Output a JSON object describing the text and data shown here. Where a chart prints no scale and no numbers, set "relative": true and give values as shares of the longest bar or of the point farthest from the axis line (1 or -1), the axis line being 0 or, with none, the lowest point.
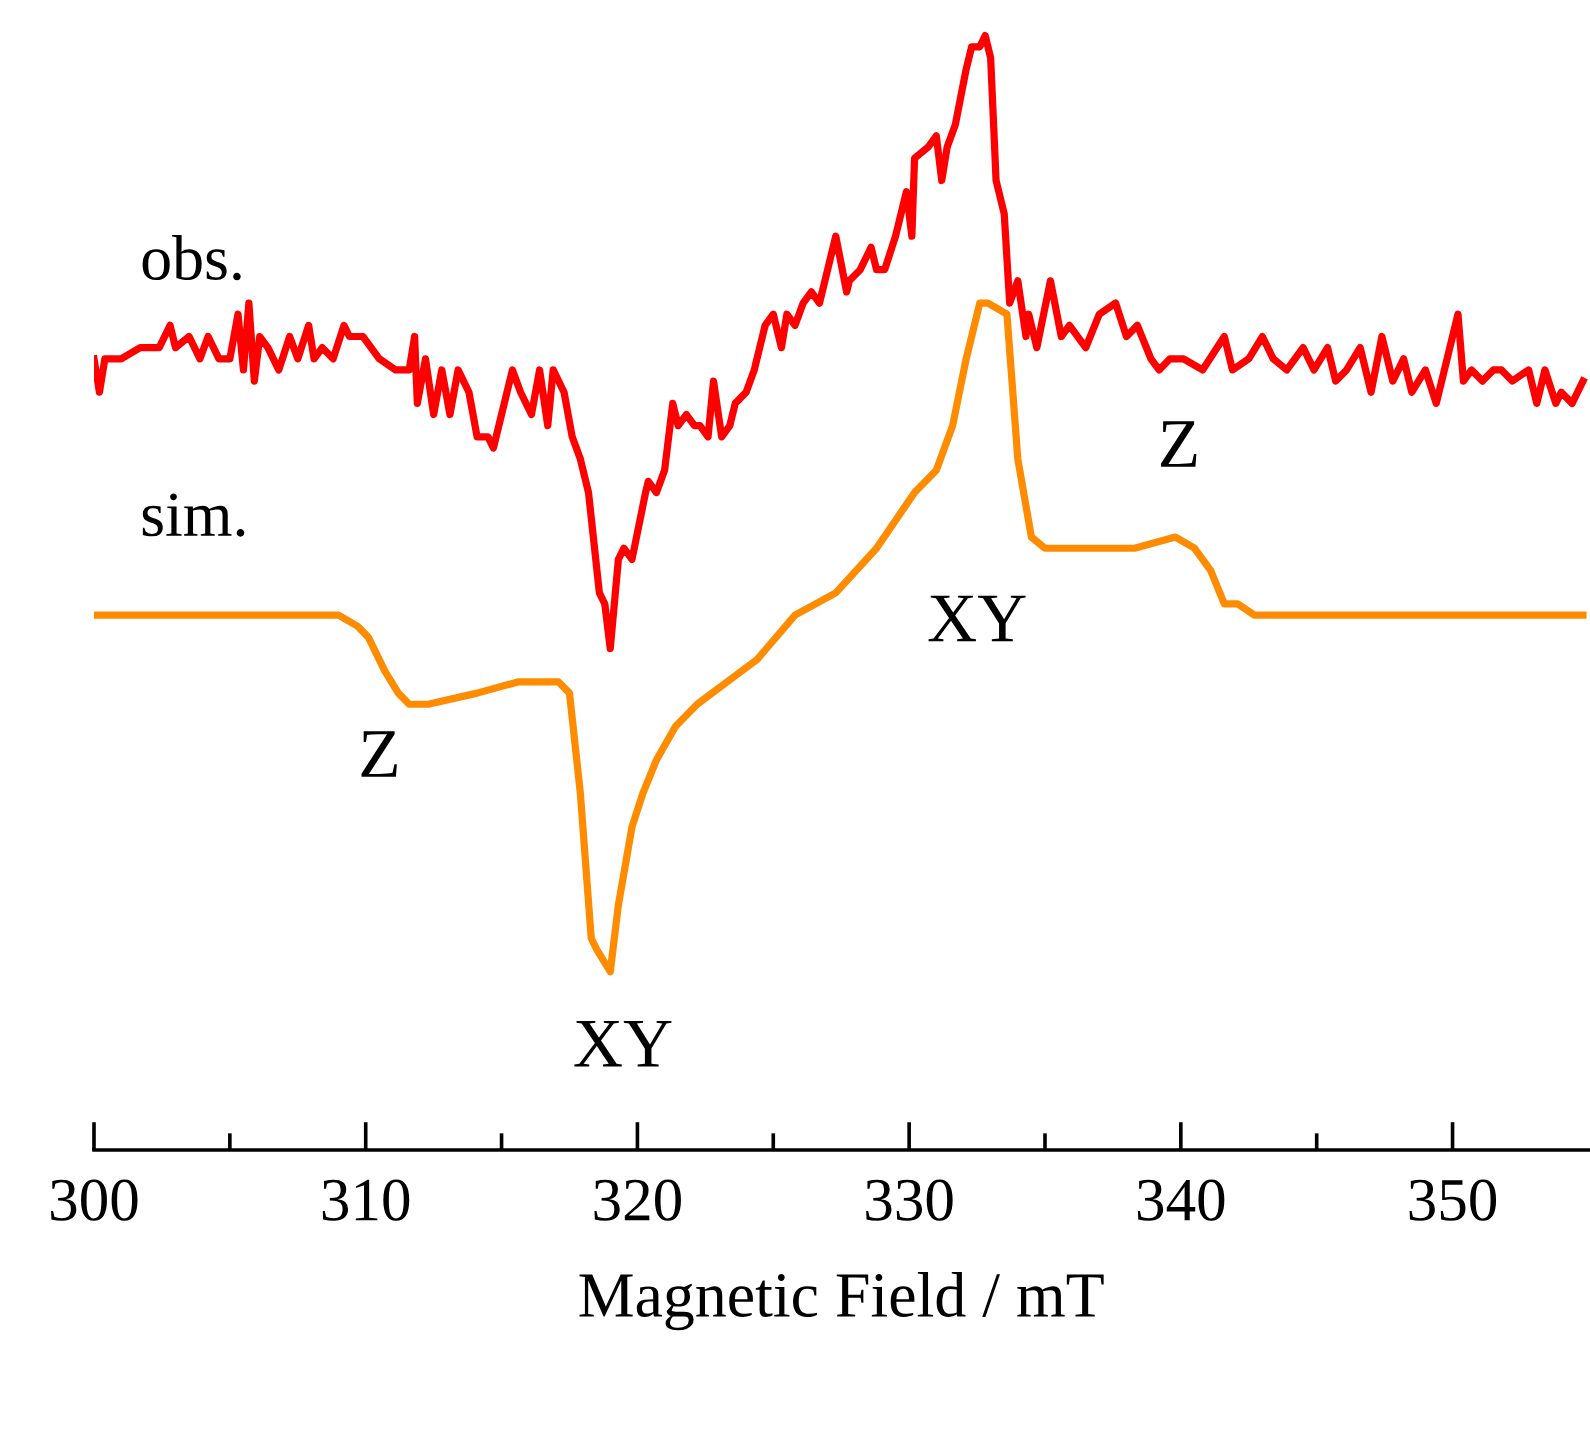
{
  "chart_data": {
    "type": "line",
    "relative": true,
    "xlabel": "Magnetic Field / mT",
    "xlim": [
      300,
      355
    ],
    "xticks": [
      300,
      {
        "value": 305,
        "label": null
      },
      310,
      {
        "value": 315,
        "label": null
      },
      320,
      {
        "value": 325,
        "label": null
      },
      330,
      {
        "value": 335,
        "label": null
      },
      340,
      {
        "value": 345,
        "label": null
      },
      350
    ],
    "grid": false,
    "legend": false,
    "marker": "none",
    "line_style": "solid",
    "annotations": [
      "Z",
      "XY",
      "XY",
      "Z"
    ],
    "series": [
      {
        "name": "obs.",
        "color": "#ff0000",
        "x": [
          300.0,
          300.2,
          300.4,
          301.0,
          301.7,
          302.4,
          302.8,
          303.0,
          303.5,
          303.9,
          304.2,
          304.6,
          305.0,
          305.3,
          305.5,
          305.7,
          305.9,
          306.1,
          306.4,
          306.8,
          307.2,
          307.5,
          307.9,
          308.1,
          308.4,
          308.8,
          309.2,
          309.4,
          309.9,
          310.5,
          311.1,
          311.6,
          311.8,
          311.9,
          312.2,
          312.5,
          312.8,
          313.1,
          313.4,
          313.8,
          314.1,
          314.5,
          314.7,
          315.4,
          315.7,
          316.1,
          316.4,
          316.7,
          316.9,
          317.3,
          317.6,
          317.9,
          318.2,
          318.6,
          318.8,
          319.0,
          319.3,
          319.5,
          319.8,
          320.3,
          320.4,
          320.7,
          321.0,
          321.3,
          321.5,
          321.8,
          322.1,
          322.3,
          322.6,
          322.8,
          323.1,
          323.4,
          323.6,
          324.0,
          324.3,
          324.7,
          325.0,
          325.3,
          325.5,
          325.8,
          326.1,
          326.4,
          326.7,
          326.9,
          327.3,
          327.7,
          327.8,
          328.2,
          328.6,
          328.8,
          329.1,
          329.5,
          329.9,
          330.1,
          330.2,
          330.7,
          331.0,
          331.2,
          331.4,
          331.7,
          332.1,
          332.3,
          332.6,
          332.8,
          333.0,
          333.2,
          333.5,
          333.7,
          334.0,
          334.3,
          334.4,
          334.7,
          335.2,
          335.6,
          335.9,
          336.5,
          337.0,
          337.6,
          338.0,
          338.4,
          338.9,
          339.2,
          339.6,
          340.1,
          340.8,
          341.6,
          341.9,
          342.5,
          343.0,
          343.4,
          343.9,
          344.5,
          344.9,
          345.4,
          345.7,
          346.1,
          346.6,
          347.0,
          347.4,
          347.8,
          348.2,
          348.5,
          349.0,
          349.4,
          350.2,
          350.4,
          350.7,
          351.1,
          351.5,
          351.8,
          352.2,
          352.8,
          353.1,
          353.4,
          353.8,
          354.0,
          354.4,
          354.8
        ],
        "values": [
          0.71,
          0.68,
          0.71,
          0.71,
          0.72,
          0.72,
          0.74,
          0.72,
          0.73,
          0.71,
          0.73,
          0.71,
          0.71,
          0.75,
          0.7,
          0.76,
          0.69,
          0.73,
          0.72,
          0.7,
          0.73,
          0.71,
          0.74,
          0.71,
          0.72,
          0.71,
          0.74,
          0.73,
          0.73,
          0.71,
          0.7,
          0.7,
          0.73,
          0.67,
          0.71,
          0.66,
          0.7,
          0.66,
          0.7,
          0.68,
          0.64,
          0.64,
          0.63,
          0.7,
          0.68,
          0.66,
          0.7,
          0.65,
          0.7,
          0.68,
          0.64,
          0.62,
          0.59,
          0.5,
          0.49,
          0.45,
          0.53,
          0.54,
          0.53,
          0.59,
          0.6,
          0.59,
          0.61,
          0.67,
          0.65,
          0.66,
          0.65,
          0.65,
          0.64,
          0.69,
          0.64,
          0.65,
          0.67,
          0.68,
          0.7,
          0.74,
          0.75,
          0.72,
          0.75,
          0.74,
          0.76,
          0.77,
          0.76,
          0.78,
          0.82,
          0.77,
          0.78,
          0.79,
          0.81,
          0.79,
          0.79,
          0.82,
          0.86,
          0.82,
          0.89,
          0.9,
          0.91,
          0.87,
          0.9,
          0.92,
          0.97,
          0.99,
          0.99,
          1.0,
          0.98,
          0.87,
          0.84,
          0.76,
          0.78,
          0.73,
          0.75,
          0.72,
          0.78,
          0.73,
          0.74,
          0.72,
          0.75,
          0.76,
          0.73,
          0.74,
          0.71,
          0.7,
          0.71,
          0.71,
          0.7,
          0.73,
          0.7,
          0.71,
          0.73,
          0.71,
          0.7,
          0.72,
          0.7,
          0.72,
          0.69,
          0.7,
          0.72,
          0.68,
          0.73,
          0.69,
          0.71,
          0.68,
          0.7,
          0.67,
          0.75,
          0.69,
          0.7,
          0.69,
          0.7,
          0.7,
          0.69,
          0.7,
          0.67,
          0.7,
          0.67,
          0.68,
          0.67,
          0.69
        ]
      },
      {
        "name": "sim.",
        "color": "#ff8c00",
        "x": [
          300.0,
          309.0,
          309.7,
          310.1,
          310.7,
          311.2,
          311.6,
          312.3,
          314.1,
          315.6,
          317.1,
          317.5,
          317.9,
          318.3,
          318.5,
          319.0,
          319.3,
          319.8,
          320.2,
          320.7,
          321.4,
          322.2,
          323.3,
          324.4,
          325.8,
          327.3,
          328.8,
          330.2,
          331.0,
          331.6,
          332.1,
          332.6,
          332.9,
          333.6,
          334.0,
          334.5,
          335.0,
          336.1,
          338.3,
          339.8,
          340.5,
          341.1,
          341.6,
          342.1,
          342.7,
          354.8
        ],
        "values": [
          0.48,
          0.48,
          0.47,
          0.46,
          0.43,
          0.41,
          0.4,
          0.4,
          0.41,
          0.42,
          0.42,
          0.41,
          0.32,
          0.19,
          0.18,
          0.16,
          0.22,
          0.29,
          0.32,
          0.35,
          0.38,
          0.4,
          0.42,
          0.44,
          0.48,
          0.5,
          0.54,
          0.59,
          0.61,
          0.65,
          0.71,
          0.76,
          0.76,
          0.75,
          0.62,
          0.55,
          0.54,
          0.54,
          0.54,
          0.55,
          0.54,
          0.52,
          0.49,
          0.49,
          0.48,
          0.48
        ]
      }
    ]
  }
}
